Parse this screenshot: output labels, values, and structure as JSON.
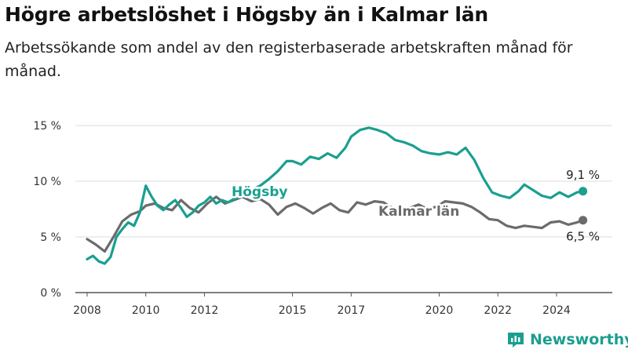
{
  "title": "Högre arbetslöshet i Högsby än i Kalmar län",
  "subtitle": "Arbetssökande som andel av den registerbaserade arbetskraften månad för månad.",
  "brand": {
    "name": "Newsworthy",
    "color": "#1c9e8f",
    "icon": "bar-chart-logo-icon"
  },
  "chart_data": {
    "type": "line",
    "ylim": [
      0,
      15
    ],
    "xlim": [
      2007.6,
      2025.9
    ],
    "yticks": [
      {
        "value": 0,
        "label": "0 %"
      },
      {
        "value": 5,
        "label": "5 %"
      },
      {
        "value": 10,
        "label": "10 %"
      },
      {
        "value": 15,
        "label": "15 %"
      }
    ],
    "xticks": [
      {
        "value": 2008,
        "label": "2008"
      },
      {
        "value": 2010,
        "label": "2010"
      },
      {
        "value": 2012,
        "label": "2012"
      },
      {
        "value": 2015,
        "label": "2015"
      },
      {
        "value": 2017,
        "label": "2017"
      },
      {
        "value": 2020,
        "label": "2020"
      },
      {
        "value": 2022,
        "label": "2022"
      },
      {
        "value": 2024,
        "label": "2024"
      }
    ],
    "grid": true,
    "series": [
      {
        "name": "Kalmar län",
        "color": "#6b6a6d",
        "end_label": "6,5 %",
        "points": [
          [
            2008.0,
            4.8
          ],
          [
            2008.3,
            4.3
          ],
          [
            2008.6,
            3.7
          ],
          [
            2008.9,
            5.0
          ],
          [
            2009.2,
            6.4
          ],
          [
            2009.5,
            7.0
          ],
          [
            2009.8,
            7.3
          ],
          [
            2010.0,
            7.8
          ],
          [
            2010.3,
            8.0
          ],
          [
            2010.6,
            7.6
          ],
          [
            2010.9,
            7.4
          ],
          [
            2011.2,
            8.3
          ],
          [
            2011.5,
            7.6
          ],
          [
            2011.8,
            7.2
          ],
          [
            2012.1,
            8.0
          ],
          [
            2012.4,
            8.6
          ],
          [
            2012.7,
            8.0
          ],
          [
            2013.0,
            8.3
          ],
          [
            2013.3,
            8.6
          ],
          [
            2013.6,
            8.2
          ],
          [
            2013.9,
            8.4
          ],
          [
            2014.2,
            7.9
          ],
          [
            2014.5,
            7.0
          ],
          [
            2014.8,
            7.7
          ],
          [
            2015.1,
            8.0
          ],
          [
            2015.4,
            7.6
          ],
          [
            2015.7,
            7.1
          ],
          [
            2016.0,
            7.6
          ],
          [
            2016.3,
            8.0
          ],
          [
            2016.6,
            7.4
          ],
          [
            2016.9,
            7.2
          ],
          [
            2017.2,
            8.1
          ],
          [
            2017.5,
            7.9
          ],
          [
            2017.8,
            8.2
          ],
          [
            2018.1,
            8.1
          ],
          [
            2018.4,
            7.6
          ],
          [
            2018.7,
            7.3
          ],
          [
            2019.0,
            7.6
          ],
          [
            2019.3,
            7.9
          ],
          [
            2019.6,
            7.5
          ],
          [
            2019.9,
            7.7
          ],
          [
            2020.2,
            8.2
          ],
          [
            2020.5,
            8.1
          ],
          [
            2020.8,
            8.0
          ],
          [
            2021.1,
            7.7
          ],
          [
            2021.4,
            7.2
          ],
          [
            2021.7,
            6.6
          ],
          [
            2022.0,
            6.5
          ],
          [
            2022.3,
            6.0
          ],
          [
            2022.6,
            5.8
          ],
          [
            2022.9,
            6.0
          ],
          [
            2023.2,
            5.9
          ],
          [
            2023.5,
            5.8
          ],
          [
            2023.8,
            6.3
          ],
          [
            2024.1,
            6.4
          ],
          [
            2024.4,
            6.1
          ],
          [
            2024.7,
            6.3
          ],
          [
            2024.9,
            6.5
          ]
        ]
      },
      {
        "name": "Högsby",
        "color": "#1a9f90",
        "end_label": "9,1 %",
        "points": [
          [
            2008.0,
            3.0
          ],
          [
            2008.2,
            3.3
          ],
          [
            2008.4,
            2.8
          ],
          [
            2008.6,
            2.6
          ],
          [
            2008.8,
            3.2
          ],
          [
            2009.0,
            5.0
          ],
          [
            2009.2,
            5.7
          ],
          [
            2009.4,
            6.3
          ],
          [
            2009.6,
            6.0
          ],
          [
            2009.8,
            7.2
          ],
          [
            2010.0,
            9.6
          ],
          [
            2010.2,
            8.6
          ],
          [
            2010.4,
            7.8
          ],
          [
            2010.6,
            7.4
          ],
          [
            2010.8,
            7.9
          ],
          [
            2011.0,
            8.3
          ],
          [
            2011.2,
            7.6
          ],
          [
            2011.4,
            6.8
          ],
          [
            2011.6,
            7.2
          ],
          [
            2011.8,
            7.8
          ],
          [
            2012.0,
            8.1
          ],
          [
            2012.2,
            8.6
          ],
          [
            2012.4,
            8.0
          ],
          [
            2012.6,
            8.3
          ],
          [
            2012.8,
            8.1
          ],
          [
            2013.0,
            8.4
          ],
          [
            2013.3,
            8.7
          ],
          [
            2013.6,
            9.2
          ],
          [
            2013.9,
            9.6
          ],
          [
            2014.2,
            10.2
          ],
          [
            2014.5,
            10.9
          ],
          [
            2014.8,
            11.8
          ],
          [
            2015.0,
            11.8
          ],
          [
            2015.3,
            11.5
          ],
          [
            2015.6,
            12.2
          ],
          [
            2015.9,
            12.0
          ],
          [
            2016.2,
            12.5
          ],
          [
            2016.5,
            12.1
          ],
          [
            2016.8,
            13.0
          ],
          [
            2017.0,
            14.0
          ],
          [
            2017.3,
            14.6
          ],
          [
            2017.6,
            14.8
          ],
          [
            2017.9,
            14.6
          ],
          [
            2018.2,
            14.3
          ],
          [
            2018.5,
            13.7
          ],
          [
            2018.8,
            13.5
          ],
          [
            2019.1,
            13.2
          ],
          [
            2019.4,
            12.7
          ],
          [
            2019.7,
            12.5
          ],
          [
            2020.0,
            12.4
          ],
          [
            2020.3,
            12.6
          ],
          [
            2020.6,
            12.4
          ],
          [
            2020.9,
            13.0
          ],
          [
            2021.2,
            11.9
          ],
          [
            2021.5,
            10.3
          ],
          [
            2021.8,
            9.0
          ],
          [
            2022.1,
            8.7
          ],
          [
            2022.4,
            8.5
          ],
          [
            2022.7,
            9.1
          ],
          [
            2022.9,
            9.7
          ],
          [
            2023.2,
            9.2
          ],
          [
            2023.5,
            8.7
          ],
          [
            2023.8,
            8.5
          ],
          [
            2024.1,
            9.0
          ],
          [
            2024.4,
            8.6
          ],
          [
            2024.7,
            9.0
          ],
          [
            2024.9,
            9.1
          ]
        ]
      }
    ]
  }
}
